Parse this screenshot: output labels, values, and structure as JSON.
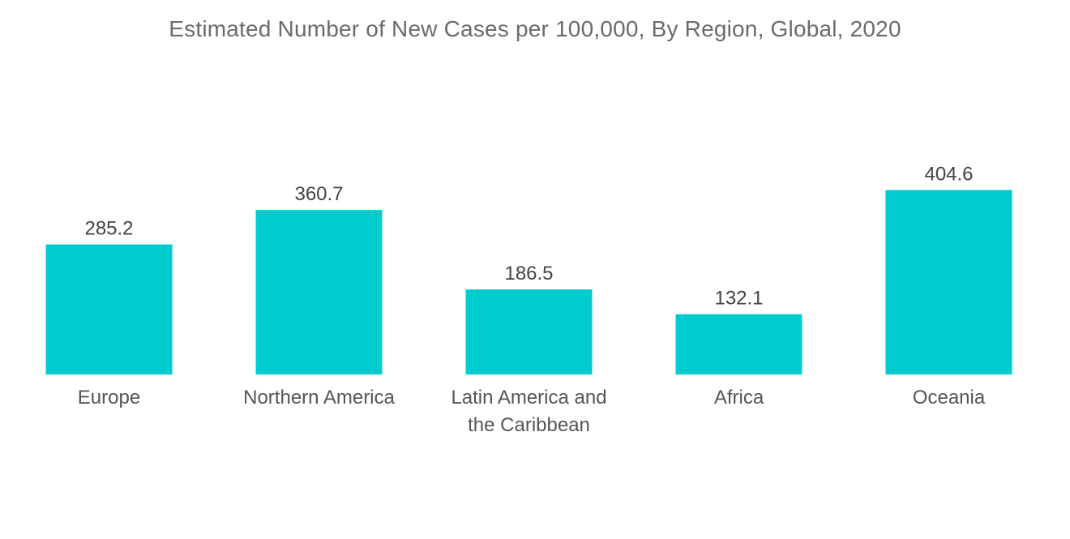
{
  "chart_data": {
    "type": "bar",
    "title": "Estimated Number of New Cases per 100,000, By Region, Global, 2020",
    "categories": [
      [
        "Europe"
      ],
      [
        "Northern America"
      ],
      [
        "Latin America and",
        "the Caribbean"
      ],
      [
        "Africa"
      ],
      [
        "Oceania"
      ]
    ],
    "values": [
      285.2,
      360.7,
      186.5,
      132.1,
      404.6
    ],
    "value_labels": [
      "285.2",
      "360.7",
      "186.5",
      "132.1",
      "404.6"
    ],
    "ylim": [
      0,
      500
    ],
    "grid": false,
    "legend": "none",
    "bar_color": "#00cccf"
  }
}
